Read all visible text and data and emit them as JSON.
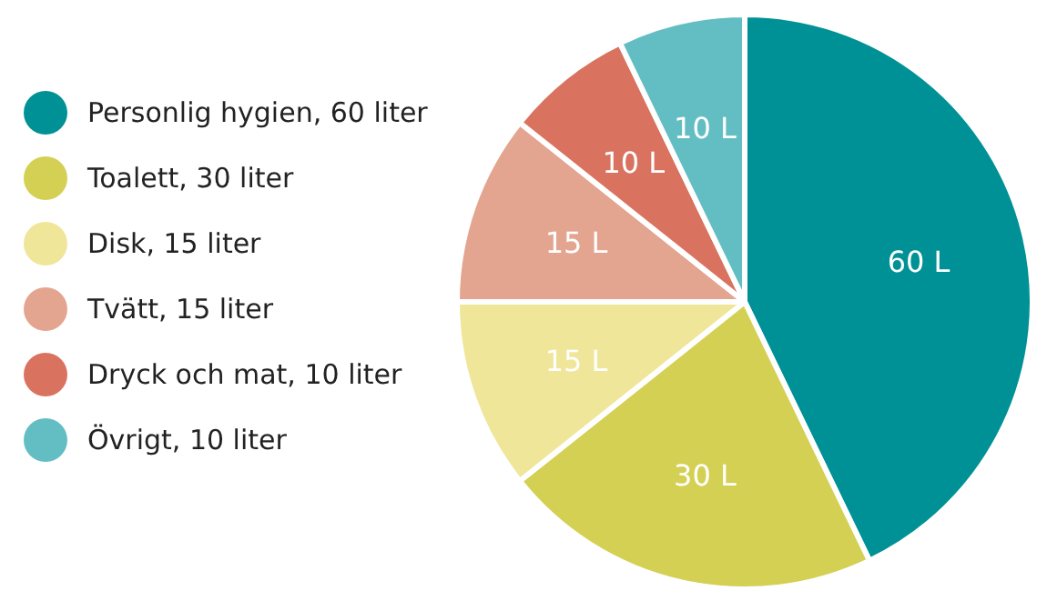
{
  "chart_data": {
    "type": "pie",
    "categories": [
      "Personlig hygien, 60 liter",
      "Toalett, 30 liter",
      "Disk, 15 liter",
      "Tvätt, 15 liter",
      "Dryck och mat, 10 liter",
      "Övrigt, 10 liter"
    ],
    "values": [
      60,
      30,
      15,
      15,
      10,
      10
    ],
    "colors": [
      "#009196",
      "#d4d054",
      "#efe69a",
      "#e4a590",
      "#d9735f",
      "#63bec4"
    ],
    "value_labels": [
      "60 L",
      "30 L",
      "15 L",
      "15 L",
      "10 L",
      "10 L"
    ],
    "legend": "left"
  }
}
